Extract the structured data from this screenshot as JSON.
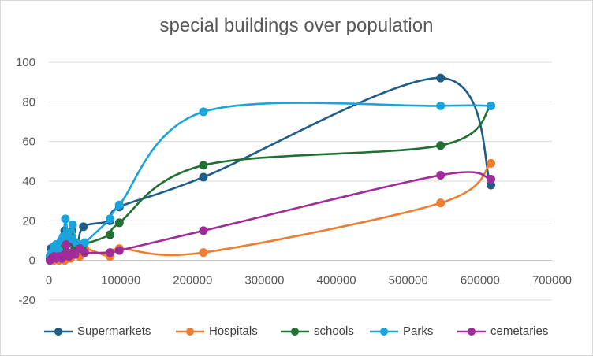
{
  "chart_data": {
    "type": "line",
    "title": "special buildings over population",
    "xlabel": "",
    "ylabel": "",
    "xlim": [
      0,
      700000
    ],
    "ylim": [
      -20,
      100
    ],
    "x_ticks": [
      0,
      100000,
      200000,
      300000,
      400000,
      500000,
      600000,
      700000
    ],
    "y_ticks": [
      -20,
      0,
      20,
      40,
      60,
      80,
      100
    ],
    "grid": "horizontal",
    "legend_position": "bottom",
    "smoothed": true,
    "series": [
      {
        "name": "Supermarkets",
        "color": "#1f5c86",
        "points": [
          [
            1500,
            2
          ],
          [
            3000,
            6
          ],
          [
            5000,
            3
          ],
          [
            8000,
            6
          ],
          [
            10000,
            4
          ],
          [
            12000,
            5
          ],
          [
            15000,
            7
          ],
          [
            18000,
            10
          ],
          [
            20000,
            12
          ],
          [
            22000,
            15
          ],
          [
            25000,
            8
          ],
          [
            28000,
            10
          ],
          [
            30000,
            12
          ],
          [
            35000,
            9
          ],
          [
            40000,
            7
          ],
          [
            48000,
            17
          ],
          [
            85000,
            20
          ],
          [
            98000,
            27
          ],
          [
            215000,
            42
          ],
          [
            545000,
            92
          ],
          [
            615000,
            38
          ]
        ]
      },
      {
        "name": "Hospitals",
        "color": "#ed7d31",
        "points": [
          [
            1500,
            0
          ],
          [
            4000,
            1
          ],
          [
            7000,
            0
          ],
          [
            10000,
            1
          ],
          [
            14000,
            0
          ],
          [
            18000,
            1
          ],
          [
            22000,
            0
          ],
          [
            25000,
            2
          ],
          [
            30000,
            1
          ],
          [
            35000,
            3
          ],
          [
            43000,
            2
          ],
          [
            50000,
            6
          ],
          [
            85000,
            2
          ],
          [
            98000,
            6
          ],
          [
            215000,
            4
          ],
          [
            545000,
            29
          ],
          [
            615000,
            49
          ]
        ]
      },
      {
        "name": "schools",
        "color": "#217033",
        "points": [
          [
            1500,
            1
          ],
          [
            5000,
            3
          ],
          [
            8000,
            2
          ],
          [
            12000,
            4
          ],
          [
            15000,
            3
          ],
          [
            18000,
            6
          ],
          [
            22000,
            5
          ],
          [
            25000,
            8
          ],
          [
            28000,
            12
          ],
          [
            32000,
            15
          ],
          [
            36000,
            6
          ],
          [
            40000,
            7
          ],
          [
            48000,
            8
          ],
          [
            85000,
            13
          ],
          [
            98000,
            19
          ],
          [
            215000,
            48
          ],
          [
            545000,
            58
          ],
          [
            615000,
            78
          ]
        ]
      },
      {
        "name": "Parks",
        "color": "#1aa3dc",
        "points": [
          [
            1500,
            2
          ],
          [
            4000,
            4
          ],
          [
            7000,
            7
          ],
          [
            10000,
            8
          ],
          [
            14000,
            5
          ],
          [
            17000,
            10
          ],
          [
            20000,
            12
          ],
          [
            23000,
            21
          ],
          [
            26000,
            14
          ],
          [
            30000,
            11
          ],
          [
            33000,
            18
          ],
          [
            38000,
            9
          ],
          [
            45000,
            8
          ],
          [
            50000,
            9
          ],
          [
            85000,
            21
          ],
          [
            98000,
            28
          ],
          [
            215000,
            75
          ],
          [
            545000,
            78
          ],
          [
            615000,
            78
          ]
        ]
      },
      {
        "name": "cemetaries",
        "color": "#a02c9a",
        "points": [
          [
            1500,
            0
          ],
          [
            4000,
            1
          ],
          [
            7000,
            2
          ],
          [
            10000,
            1
          ],
          [
            14000,
            2
          ],
          [
            18000,
            1
          ],
          [
            22000,
            3
          ],
          [
            24000,
            8
          ],
          [
            28000,
            2
          ],
          [
            32000,
            4
          ],
          [
            36000,
            3
          ],
          [
            43000,
            6
          ],
          [
            50000,
            4
          ],
          [
            85000,
            4
          ],
          [
            98000,
            5
          ],
          [
            215000,
            15
          ],
          [
            545000,
            43
          ],
          [
            615000,
            41
          ]
        ]
      }
    ]
  }
}
